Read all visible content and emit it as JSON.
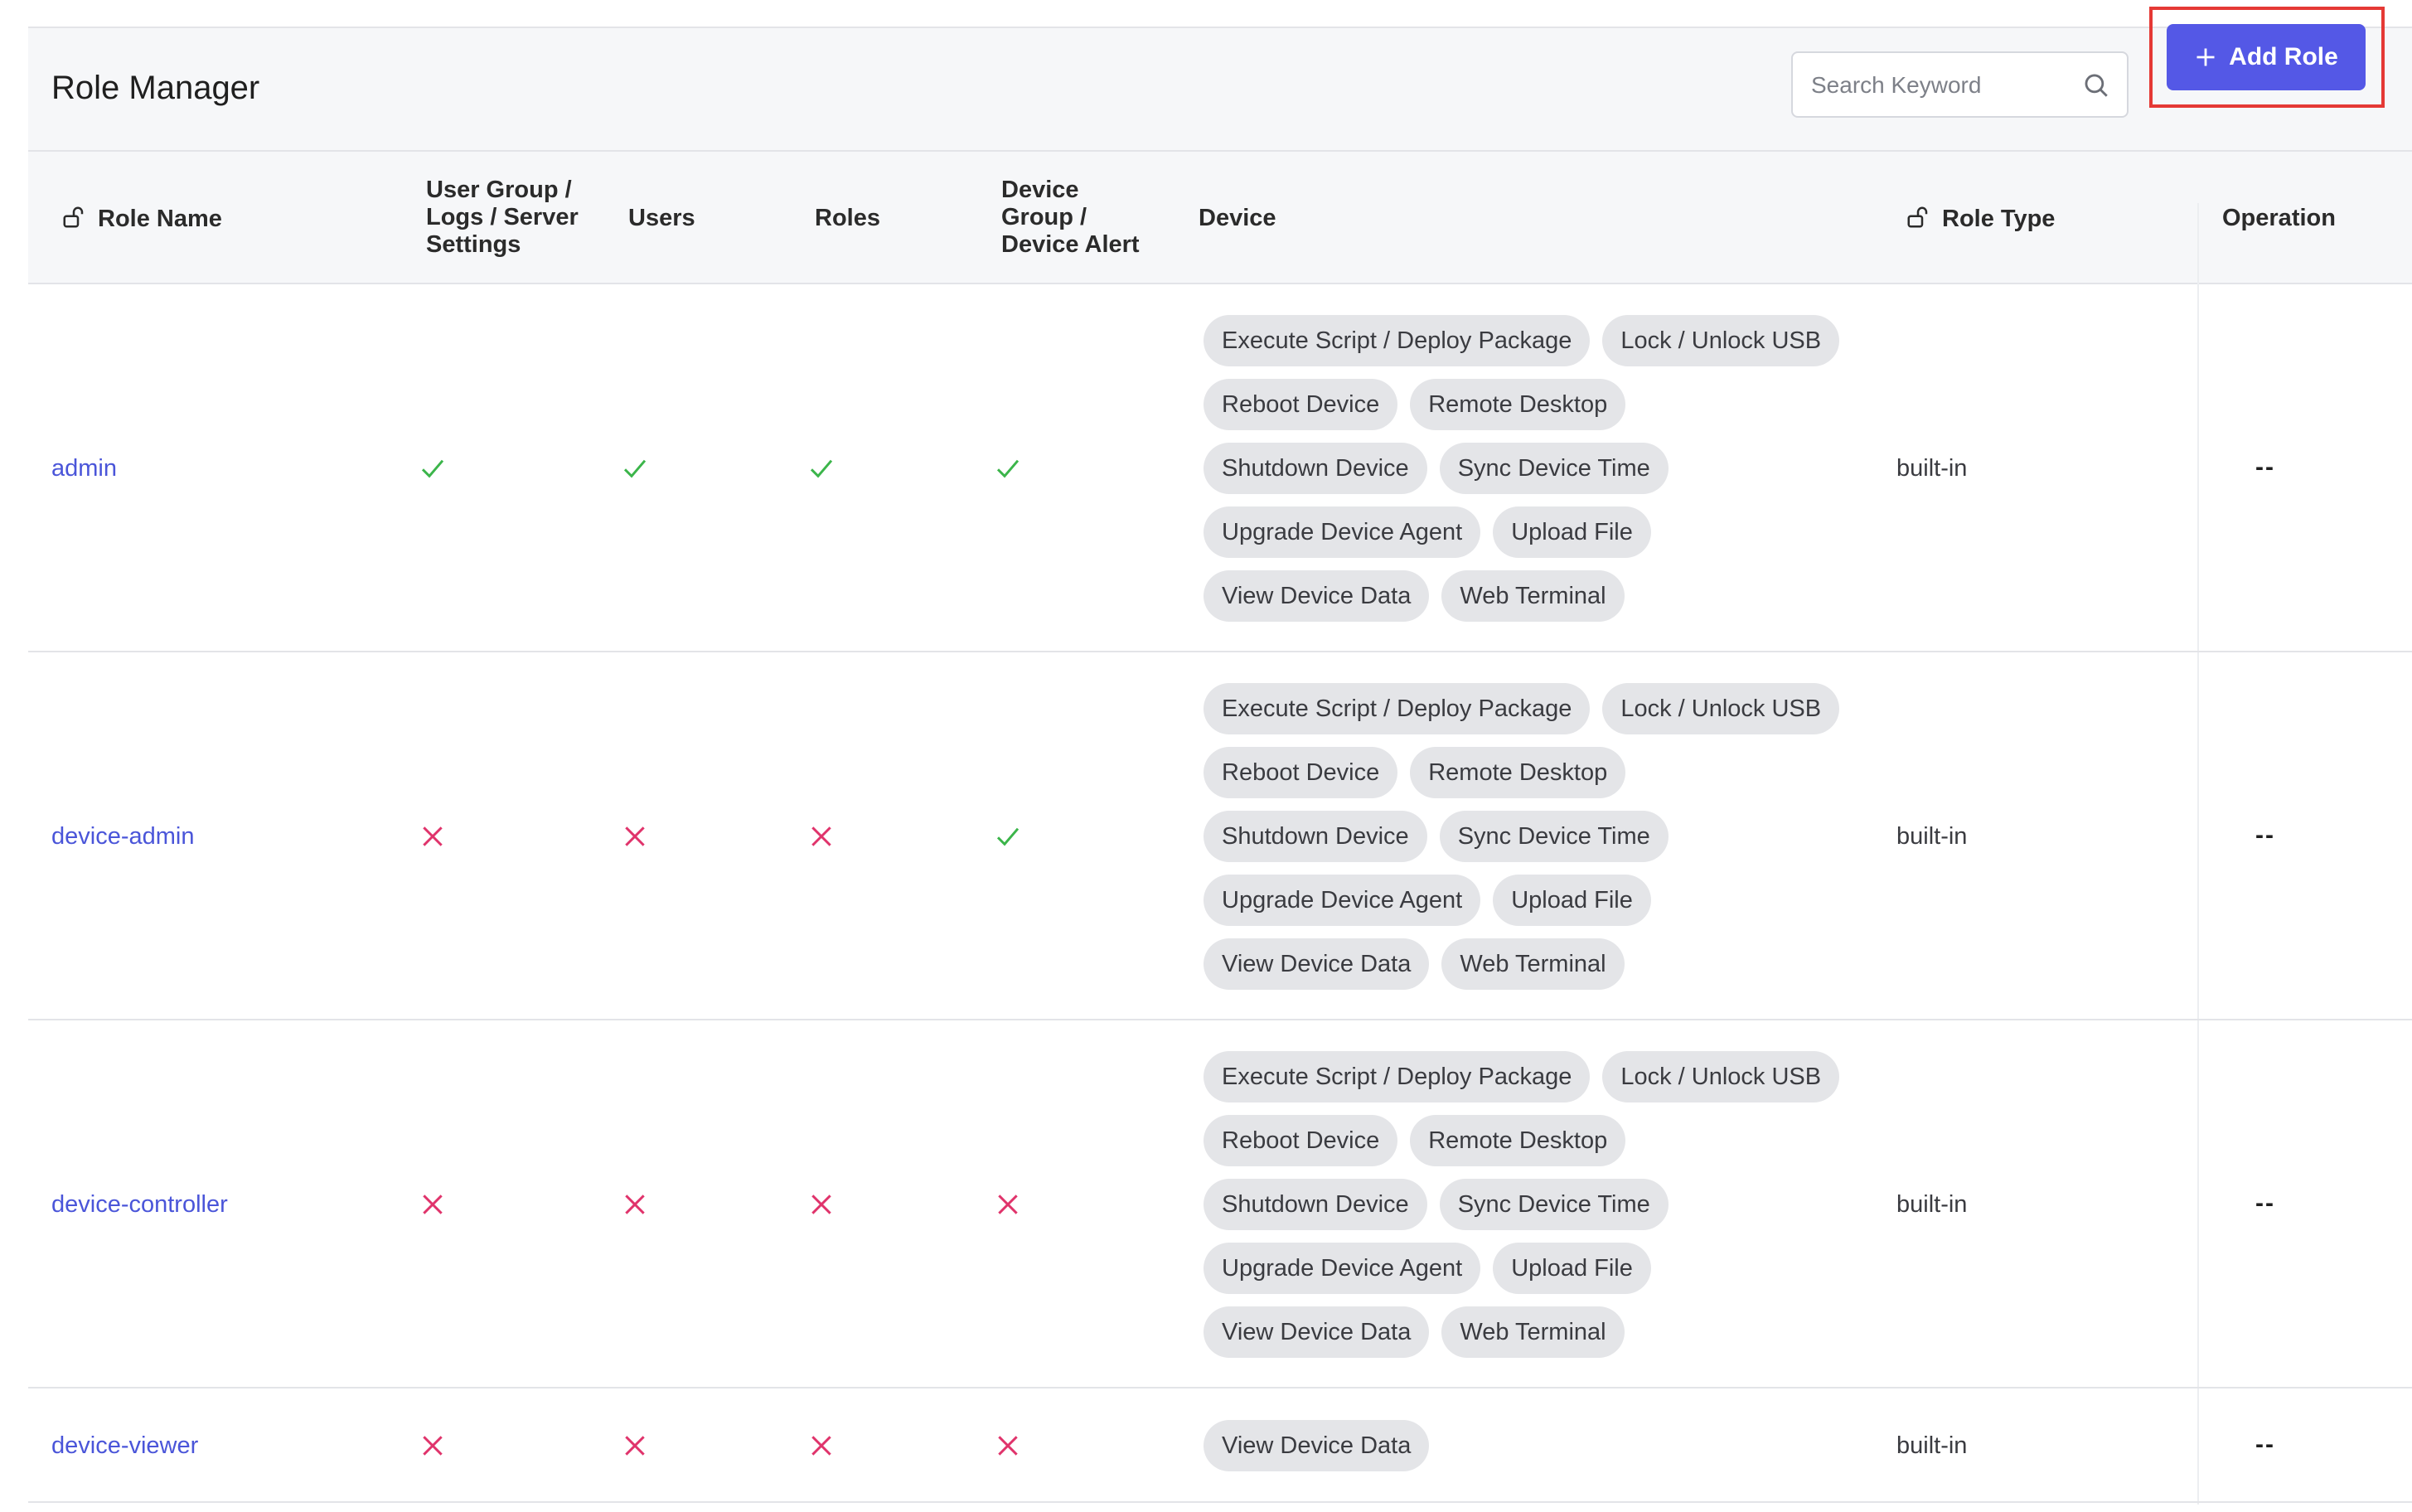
{
  "page": {
    "title": "Role Manager",
    "search": {
      "placeholder": "Search Keyword"
    },
    "add_button": {
      "label": "Add Role"
    },
    "colors": {
      "accent": "#5458e6",
      "link": "#4a55d9",
      "check": "#3bb54a",
      "cross": "#e0336b",
      "highlight": "#e53935"
    }
  },
  "table": {
    "columns": {
      "role_name": "Role Name",
      "ug_line1": "User Group /",
      "ug_line2": "Logs / Server",
      "ug_line3": "Settings",
      "users": "Users",
      "roles": "Roles",
      "dg_line1": "Device",
      "dg_line2": "Group /",
      "dg_line3": "Device Alert",
      "device": "Device",
      "role_type": "Role Type",
      "operation": "Operation"
    },
    "rows": [
      {
        "name": "admin",
        "user_group": "check",
        "users": "check",
        "roles": "check",
        "device_group": "check",
        "devices": [
          "Execute Script / Deploy Package",
          "Lock / Unlock USB",
          "Reboot Device",
          "Remote Desktop",
          "Shutdown Device",
          "Sync Device Time",
          "Upgrade Device Agent",
          "Upload File",
          "View Device Data",
          "Web Terminal"
        ],
        "role_type": "built-in",
        "operation": "--"
      },
      {
        "name": "device-admin",
        "user_group": "cross",
        "users": "cross",
        "roles": "cross",
        "device_group": "check",
        "devices": [
          "Execute Script / Deploy Package",
          "Lock / Unlock USB",
          "Reboot Device",
          "Remote Desktop",
          "Shutdown Device",
          "Sync Device Time",
          "Upgrade Device Agent",
          "Upload File",
          "View Device Data",
          "Web Terminal"
        ],
        "role_type": "built-in",
        "operation": "--"
      },
      {
        "name": "device-controller",
        "user_group": "cross",
        "users": "cross",
        "roles": "cross",
        "device_group": "cross",
        "devices": [
          "Execute Script / Deploy Package",
          "Lock / Unlock USB",
          "Reboot Device",
          "Remote Desktop",
          "Shutdown Device",
          "Sync Device Time",
          "Upgrade Device Agent",
          "Upload File",
          "View Device Data",
          "Web Terminal"
        ],
        "role_type": "built-in",
        "operation": "--"
      },
      {
        "name": "device-viewer",
        "user_group": "cross",
        "users": "cross",
        "roles": "cross",
        "device_group": "cross",
        "devices": [
          "View Device Data"
        ],
        "role_type": "built-in",
        "operation": "--"
      }
    ]
  }
}
